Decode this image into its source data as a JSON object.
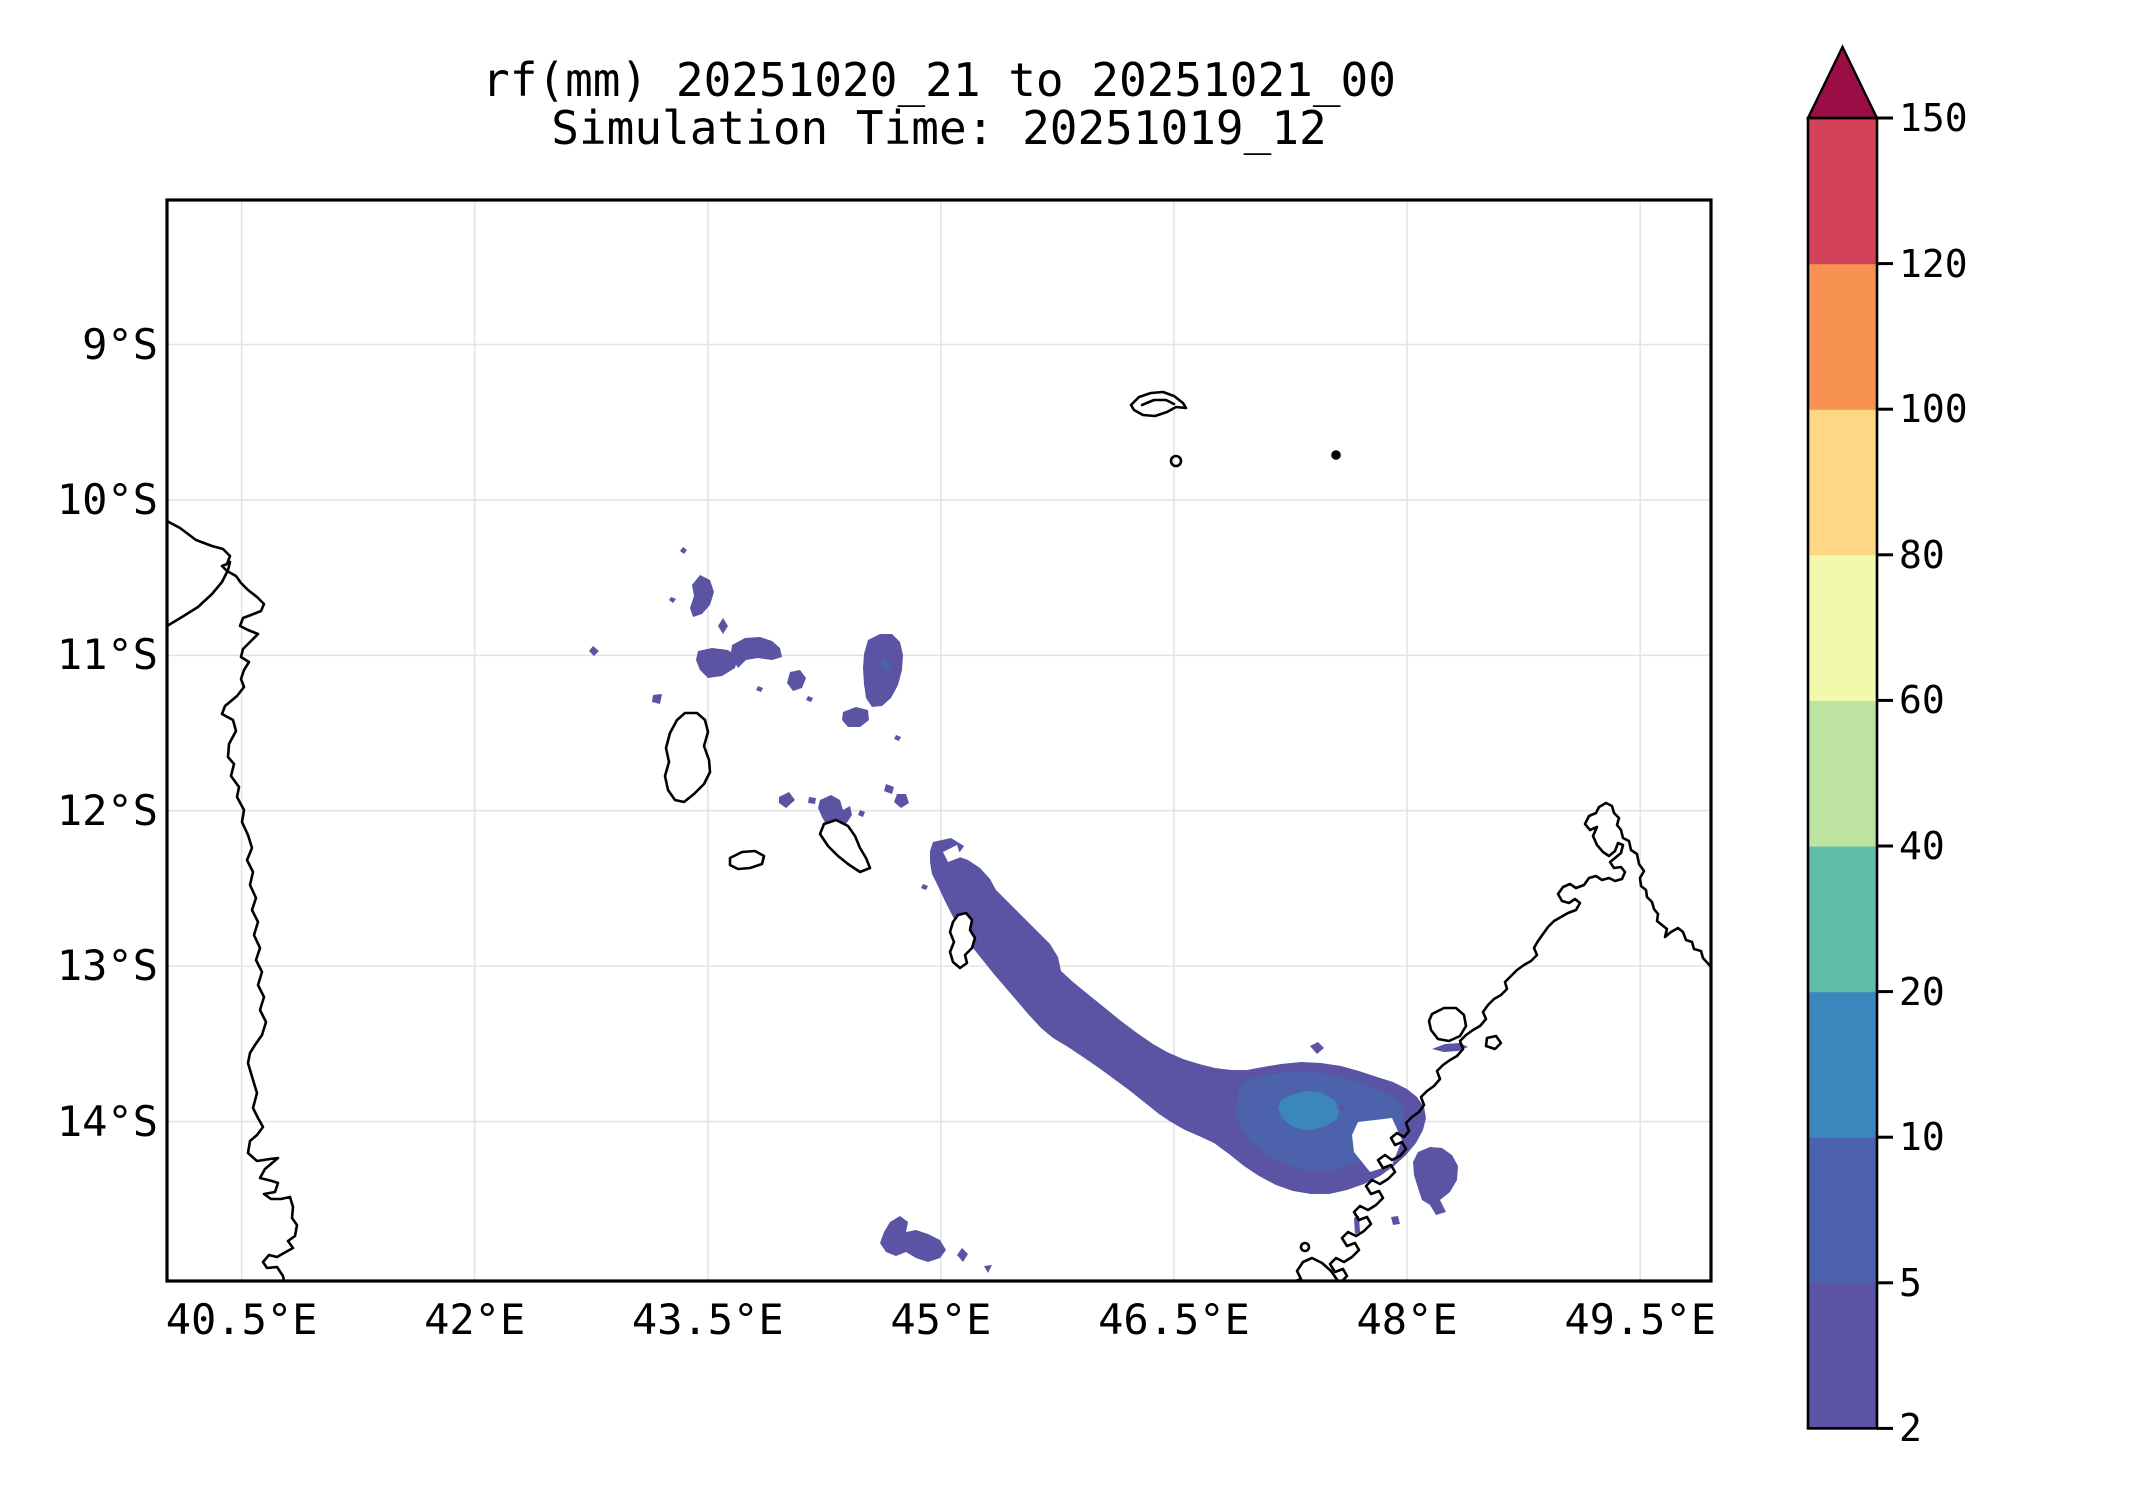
{
  "title": {
    "line1": "rf(mm) 20251020_21 to 20251021_00",
    "line2": "Simulation Time: 20251019_12"
  },
  "axes": {
    "lon_ticks": {
      "values": [
        40.5,
        42,
        43.5,
        45,
        46.5,
        48,
        49.5
      ],
      "labels": [
        "40.5°E",
        "42°E",
        "43.5°E",
        "45°E",
        "46.5°E",
        "48°E",
        "49.5°E"
      ]
    },
    "lat_ticks": {
      "values": [
        9,
        10,
        11,
        12,
        13,
        14
      ],
      "labels": [
        "9°S",
        "10°S",
        "11°S",
        "12°S",
        "13°S",
        "14°S"
      ]
    }
  },
  "colorbar": {
    "tick_values": [
      2,
      5,
      10,
      20,
      40,
      60,
      80,
      100,
      120,
      150
    ],
    "tick_labels": [
      "2",
      "5",
      "10",
      "20",
      "40",
      "60",
      "80",
      "100",
      "120",
      "150"
    ],
    "extend_above": true
  },
  "colors": {
    "background": "#ffffff",
    "coastline": "#000000",
    "gridline": "#e4e4e4",
    "frame": "#000000",
    "land_fill": "#ffffff",
    "text": "#000000"
  },
  "chart_data": {
    "type": "heatmap",
    "subtype": "filled-contour-map",
    "variable": "rf(mm)",
    "title": "rf(mm) 20251020_21 to 20251021_00",
    "subtitle": "Simulation Time: 20251019_12",
    "projection": "PlateCarree (equal-aspect lat/lon)",
    "extent": {
      "lon_min": 40.0,
      "lon_max": 49.95,
      "lat_min_S": 8.07,
      "lat_max_S": 15.0
    },
    "grid_on": true,
    "legend_position": "right-colorbar",
    "levels": [
      {
        "range": "2-5",
        "color": "#5b53a4"
      },
      {
        "range": "5-10",
        "color": "#4c62ac"
      },
      {
        "range": "10-20",
        "color": "#3b87bd"
      },
      {
        "range": "20-40",
        "color": "#5fbda9"
      },
      {
        "range": "40-60",
        "color": "#bde3a1"
      },
      {
        "range": "60-80",
        "color": "#f0f9ac"
      },
      {
        "range": "80-100",
        "color": "#fdd783"
      },
      {
        "range": "100-120",
        "color": "#f89252"
      },
      {
        "range": "120-150",
        "color": "#d4425a"
      },
      {
        "range": "150+",
        "color": "#9b0e45"
      }
    ],
    "features": [
      {
        "area": "Scattered cells NE of Comoros, 43.3-45.0E / 10.4-12.4S",
        "rainfall_mm": "2-5"
      },
      {
        "area": "Larger cell east of Comoros, 44.5-44.8E / 10.8-11.3S",
        "rainfall_mm": "2-10"
      },
      {
        "area": "SW-NE band from near Mayotte (45.0E,12.3S) to NW Madagascar (48.2E,14.3S)",
        "rainfall_mm": "2-5"
      },
      {
        "area": "Band core NW of Madagascar, 47.0-48.0E / 13.6-14.3S",
        "rainfall_mm": "5-20",
        "max": "10-20 mm near 47.4E 14.0S"
      },
      {
        "area": "Cells at bottom centre, 44.6-45.3E / 14.5-14.9S",
        "rainfall_mm": "2-5"
      },
      {
        "area": "Coastal cells NW Madagascar, 48.1-48.4E / 13.4-14.6S",
        "rainfall_mm": "2-5"
      }
    ],
    "map_outline_features": [
      "africa-coast-mozambique-tanzania",
      "grande-comore",
      "moheli",
      "anjouan",
      "mayotte",
      "aldabra-atoll",
      "assumption-island",
      "cosmoledo-dot",
      "madagascar-north-tip",
      "nosy-be",
      "nosy-komba"
    ]
  }
}
